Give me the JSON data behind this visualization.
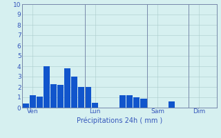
{
  "bar_values": [
    0.4,
    1.2,
    1.1,
    4.0,
    2.3,
    2.2,
    3.8,
    3.0,
    2.0,
    2.0,
    0.5,
    0.0,
    0.0,
    0.0,
    1.2,
    1.2,
    1.0,
    0.9,
    0.0,
    0.0,
    0.0,
    0.6,
    0.0,
    0.0,
    0.0,
    0.0,
    0.0,
    0.0
  ],
  "bar_color": "#1155cc",
  "background_color": "#d6f0f0",
  "grid_color": "#aacccc",
  "axis_line_color": "#7788aa",
  "text_color": "#3355bb",
  "xlabel": "Précipitations 24h ( mm )",
  "ylim": [
    0,
    10
  ],
  "yticks": [
    0,
    1,
    2,
    3,
    4,
    5,
    6,
    7,
    8,
    9,
    10
  ],
  "day_labels": [
    "Ven",
    "Lun",
    "Sam",
    "Dim"
  ],
  "day_positions": [
    1,
    10,
    19,
    25
  ],
  "vline_positions": [
    0,
    9,
    18,
    24
  ],
  "n_bars": 28
}
